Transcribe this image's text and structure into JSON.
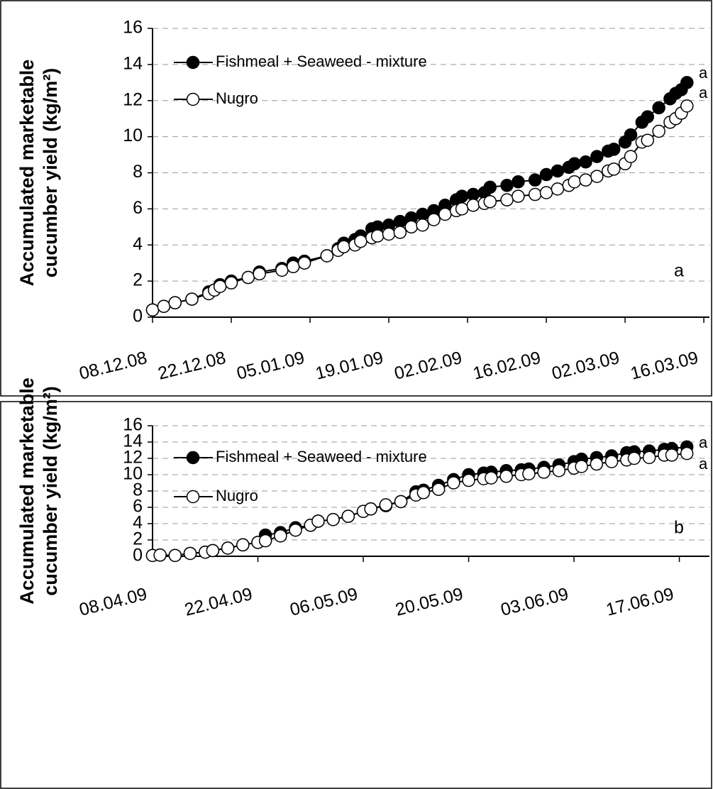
{
  "chart_data": [
    {
      "type": "line",
      "y_label": [
        "Accumulated marketable",
        "cucumber yield (kg/m²)"
      ],
      "panel_label": "a",
      "end_labels": [
        "a",
        "a"
      ],
      "grid": true,
      "x": [
        "2008-12-08",
        "2008-12-10",
        "2008-12-12",
        "2008-12-15",
        "2008-12-18",
        "2008-12-19",
        "2008-12-20",
        "2008-12-22",
        "2008-12-25",
        "2008-12-27",
        "2008-12-31",
        "2009-01-02",
        "2009-01-04",
        "2009-01-08",
        "2009-01-10",
        "2009-01-11",
        "2009-01-13",
        "2009-01-14",
        "2009-01-16",
        "2009-01-17",
        "2009-01-19",
        "2009-01-21",
        "2009-01-23",
        "2009-01-25",
        "2009-01-27",
        "2009-01-29",
        "2009-01-31",
        "2009-02-01",
        "2009-02-03",
        "2009-02-05",
        "2009-02-06",
        "2009-02-09",
        "2009-02-11",
        "2009-02-14",
        "2009-02-16",
        "2009-02-18",
        "2009-02-20",
        "2009-02-21",
        "2009-02-23",
        "2009-02-25",
        "2009-02-27",
        "2009-02-28",
        "2009-03-02",
        "2009-03-03",
        "2009-03-05",
        "2009-03-06",
        "2009-03-08",
        "2009-03-10",
        "2009-03-11",
        "2009-03-12",
        "2009-03-13"
      ],
      "series": [
        {
          "name": "Fishmeal + Seaweed - mixture",
          "color": "#000000",
          "values": [
            0.4,
            0.6,
            0.8,
            1.0,
            1.4,
            1.5,
            1.8,
            2.0,
            2.2,
            2.5,
            2.7,
            3.0,
            3.1,
            3.4,
            3.8,
            4.1,
            4.3,
            4.5,
            4.9,
            5.0,
            5.1,
            5.3,
            5.5,
            5.7,
            5.9,
            6.2,
            6.5,
            6.7,
            6.8,
            6.9,
            7.2,
            7.3,
            7.5,
            7.6,
            7.9,
            8.1,
            8.3,
            8.5,
            8.6,
            8.9,
            9.2,
            9.3,
            9.7,
            10.1,
            10.8,
            11.1,
            11.6,
            12.1,
            12.4,
            12.6,
            13.0
          ]
        },
        {
          "name": "Nugro",
          "color": "#ffffff",
          "values": [
            0.4,
            0.6,
            0.8,
            1.0,
            1.3,
            1.5,
            1.7,
            1.9,
            2.2,
            2.4,
            2.6,
            2.8,
            3.0,
            3.4,
            3.7,
            3.9,
            4.0,
            4.2,
            4.4,
            4.5,
            4.6,
            4.7,
            5.0,
            5.1,
            5.4,
            5.7,
            5.9,
            6.0,
            6.2,
            6.3,
            6.4,
            6.5,
            6.7,
            6.8,
            6.9,
            7.1,
            7.3,
            7.5,
            7.6,
            7.8,
            8.1,
            8.2,
            8.5,
            8.9,
            9.7,
            9.8,
            10.3,
            10.8,
            11.0,
            11.3,
            11.7
          ]
        }
      ],
      "xlim": [
        "2008-12-08",
        "2009-03-17"
      ],
      "xticks": [
        {
          "value": "2008-12-08",
          "label": "08.12.08"
        },
        {
          "value": "2008-12-22",
          "label": "22.12.08"
        },
        {
          "value": "2009-01-05",
          "label": "05.01.09"
        },
        {
          "value": "2009-01-19",
          "label": "19.01.09"
        },
        {
          "value": "2009-02-02",
          "label": "02.02.09"
        },
        {
          "value": "2009-02-16",
          "label": "16.02.09"
        },
        {
          "value": "2009-03-02",
          "label": "02.03.09"
        },
        {
          "value": "2009-03-16",
          "label": "16.03.09"
        }
      ],
      "ylim": [
        0,
        16
      ],
      "yticks": [
        0,
        2,
        4,
        6,
        8,
        10,
        12,
        14,
        16
      ]
    },
    {
      "type": "line",
      "y_label": [
        "Accumulated marketable",
        "cucumber yield (kg/m²)"
      ],
      "panel_label": "b",
      "end_labels": [
        "a",
        "a"
      ],
      "grid": true,
      "x": [
        "2009-04-08",
        "2009-04-09",
        "2009-04-11",
        "2009-04-13",
        "2009-04-15",
        "2009-04-16",
        "2009-04-18",
        "2009-04-20",
        "2009-04-22",
        "2009-04-23",
        "2009-04-25",
        "2009-04-27",
        "2009-04-29",
        "2009-04-30",
        "2009-05-02",
        "2009-05-04",
        "2009-05-06",
        "2009-05-07",
        "2009-05-09",
        "2009-05-11",
        "2009-05-13",
        "2009-05-14",
        "2009-05-16",
        "2009-05-18",
        "2009-05-20",
        "2009-05-22",
        "2009-05-23",
        "2009-05-25",
        "2009-05-27",
        "2009-05-28",
        "2009-05-30",
        "2009-06-01",
        "2009-06-03",
        "2009-06-04",
        "2009-06-06",
        "2009-06-08",
        "2009-06-10",
        "2009-06-11",
        "2009-06-13",
        "2009-06-15",
        "2009-06-16",
        "2009-06-18"
      ],
      "series": [
        {
          "name": "Fishmeal + Seaweed - mixture",
          "color": "#000000",
          "values": [
            0.1,
            0.15,
            0.1,
            0.35,
            0.5,
            0.7,
            1.0,
            1.4,
            1.7,
            2.6,
            2.9,
            3.5,
            3.8,
            4.3,
            4.5,
            4.9,
            5.5,
            5.8,
            6.2,
            6.7,
            7.9,
            8.1,
            8.7,
            9.4,
            10.0,
            10.2,
            10.3,
            10.5,
            10.6,
            10.7,
            10.9,
            11.2,
            11.6,
            11.9,
            12.1,
            12.3,
            12.7,
            12.8,
            12.9,
            13.1,
            13.2,
            13.4
          ]
        },
        {
          "name": "Nugro",
          "color": "#ffffff",
          "values": [
            0.1,
            0.15,
            0.1,
            0.35,
            0.5,
            0.7,
            1.0,
            1.4,
            1.7,
            1.9,
            2.5,
            3.2,
            3.8,
            4.3,
            4.5,
            4.9,
            5.5,
            5.8,
            6.3,
            6.7,
            7.5,
            7.8,
            8.2,
            9.0,
            9.3,
            9.5,
            9.6,
            9.8,
            10.0,
            10.1,
            10.3,
            10.5,
            10.8,
            11.0,
            11.3,
            11.6,
            11.8,
            12.0,
            12.1,
            12.4,
            12.4,
            12.6
          ]
        }
      ],
      "xlim": [
        "2009-04-08",
        "2009-06-21"
      ],
      "xticks": [
        {
          "value": "2009-04-08",
          "label": "08.04.09"
        },
        {
          "value": "2009-04-22",
          "label": "22.04.09"
        },
        {
          "value": "2009-05-06",
          "label": "06.05.09"
        },
        {
          "value": "2009-05-20",
          "label": "20.05.09"
        },
        {
          "value": "2009-06-03",
          "label": "03.06.09"
        },
        {
          "value": "2009-06-17",
          "label": "17.06.09"
        }
      ],
      "ylim": [
        0,
        16
      ],
      "yticks": [
        0,
        2,
        4,
        6,
        8,
        10,
        12,
        14,
        16
      ]
    }
  ]
}
